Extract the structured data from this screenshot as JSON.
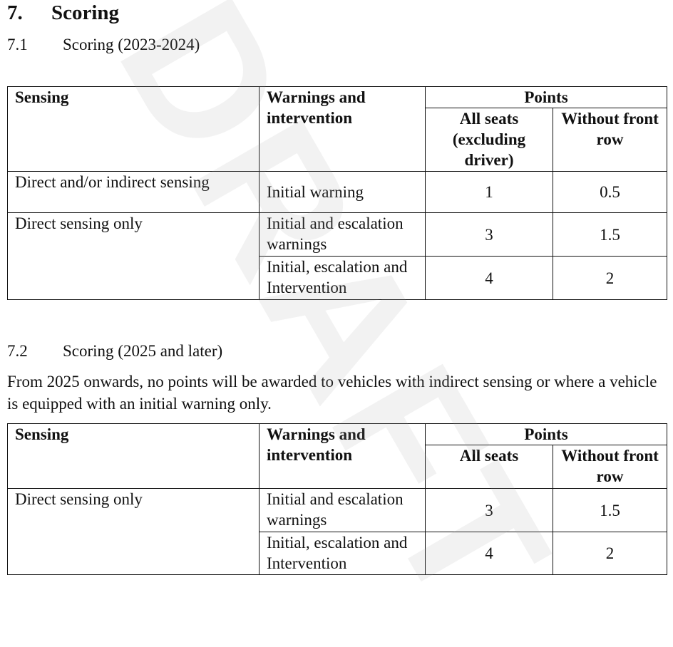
{
  "section": {
    "number": "7.",
    "title": "Scoring"
  },
  "sub1": {
    "number": "7.1",
    "title": "Scoring (2023-2024)"
  },
  "table1": {
    "headers": {
      "sensing": "Sensing",
      "warnings": "Warnings and intervention",
      "points": "Points",
      "all_seats": "All seats (excluding driver)",
      "without_front": "Without front row"
    },
    "rows": [
      {
        "sensing": "Direct and/or indirect sensing",
        "warnings": "Initial warning",
        "all": "1",
        "without": "0.5"
      },
      {
        "sensing": "Direct sensing only",
        "warnings": "Initial and escalation warnings",
        "all": "3",
        "without": "1.5"
      },
      {
        "warnings": "Initial, escalation and Intervention",
        "all": "4",
        "without": "2"
      }
    ]
  },
  "sub2": {
    "number": "7.2",
    "title": "Scoring (2025 and later)"
  },
  "paragraph": "From 2025 onwards, no points will be awarded to vehicles with indirect sensing or where a vehicle is equipped with an initial warning only.",
  "table2": {
    "headers": {
      "sensing": "Sensing",
      "warnings": "Warnings and intervention",
      "points": "Points",
      "all_seats": "All seats",
      "without_front": "Without front row"
    },
    "rows": [
      {
        "sensing": "Direct sensing only",
        "warnings": "Initial and escalation warnings",
        "all": "3",
        "without": "1.5"
      },
      {
        "warnings": "Initial, escalation and Intervention",
        "all": "4",
        "without": "2"
      }
    ]
  },
  "watermark": "DRAFT"
}
